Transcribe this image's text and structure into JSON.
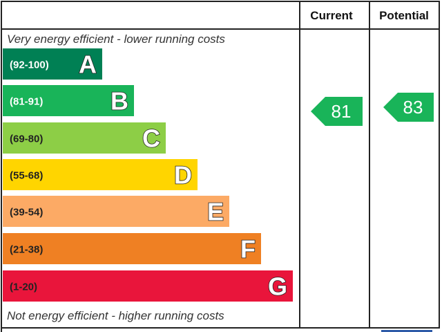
{
  "header": {
    "columns": [
      "Current",
      "Potential"
    ]
  },
  "notes": {
    "top": "Very energy efficient - lower running costs",
    "bottom": "Not energy efficient - higher running costs"
  },
  "bands": [
    {
      "range": "(92-100)",
      "letter": "A"
    },
    {
      "range": "(81-91)",
      "letter": "B"
    },
    {
      "range": "(69-80)",
      "letter": "C"
    },
    {
      "range": "(55-68)",
      "letter": "D"
    },
    {
      "range": "(39-54)",
      "letter": "E"
    },
    {
      "range": "(21-38)",
      "letter": "F"
    },
    {
      "range": "(1-20)",
      "letter": "G"
    }
  ],
  "ratings": {
    "current": 81,
    "potential": 83
  }
}
